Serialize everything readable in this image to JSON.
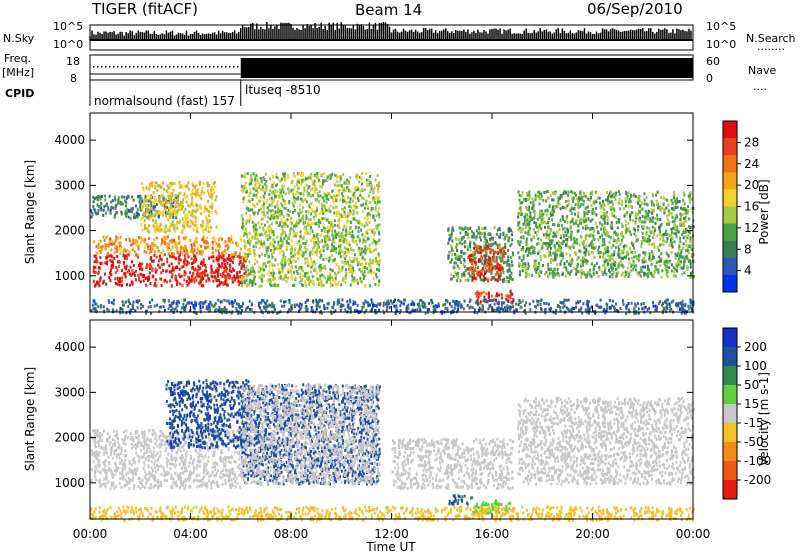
{
  "header": {
    "radar": "TIGER (fitACF)",
    "beam": "Beam 14",
    "date": "06/Sep/2010"
  },
  "nsky_panel": {
    "left_label": "N.Sky",
    "left_ticks": [
      "10^5",
      "10^0"
    ],
    "right_label": "N.Search",
    "right_ticks": [
      "10^5",
      "10^0"
    ],
    "right_dots": "........"
  },
  "freq_panel": {
    "left_label_1": "Freq.",
    "left_label_2": "[MHz]",
    "left_ticks": [
      "18",
      "8"
    ],
    "right_label": "Nave",
    "right_ticks": [
      "60",
      "0"
    ],
    "right_dots": "...."
  },
  "cpid_panel": {
    "label": "CPID",
    "program_1": "normalsound (fast) 157",
    "program_2": "ltuseq  -8510",
    "switch_time_hours": 6.0
  },
  "x_axis": {
    "label": "Time UT",
    "range_hours": [
      0,
      24
    ],
    "ticks": [
      "00:00",
      "04:00",
      "08:00",
      "12:00",
      "16:00",
      "20:00",
      "00:00"
    ]
  },
  "chart_data": [
    {
      "type": "heatmap",
      "name": "power",
      "ylabel": "Slant Range [km]",
      "y_ticks": [
        "1000",
        "2000",
        "3000",
        "4000"
      ],
      "ylim": [
        200,
        4600
      ],
      "colorbar": {
        "label": "Power [dB]",
        "range": [
          0,
          32
        ],
        "ticks": [
          "28",
          "24",
          "20",
          "16",
          "12",
          "8",
          "4"
        ],
        "colors": [
          "#0033ee",
          "#2e57b8",
          "#3d7a57",
          "#48a34a",
          "#a6c941",
          "#f2d22b",
          "#f5a31a",
          "#f07314",
          "#e8421c",
          "#e01010"
        ]
      },
      "regions": [
        {
          "t": [
            0.1,
            6.2
          ],
          "r": [
            800,
            1500
          ],
          "level_db": 30
        },
        {
          "t": [
            0.1,
            6.0
          ],
          "r": [
            1500,
            1900
          ],
          "level_db": 22
        },
        {
          "t": [
            0.0,
            3.5
          ],
          "r": [
            2300,
            2800
          ],
          "level_db": 8
        },
        {
          "t": [
            2.0,
            5.0
          ],
          "r": [
            2000,
            3100
          ],
          "level_db": 18
        },
        {
          "t": [
            6.0,
            11.5
          ],
          "r": [
            800,
            3300
          ],
          "level_db": 14
        },
        {
          "t": [
            14.2,
            16.8
          ],
          "r": [
            900,
            2100
          ],
          "level_db": 10
        },
        {
          "t": [
            15.0,
            16.5
          ],
          "r": [
            900,
            1700
          ],
          "level_db": 28
        },
        {
          "t": [
            15.3,
            16.8
          ],
          "r": [
            400,
            700
          ],
          "level_db": 28
        },
        {
          "t": [
            17.0,
            24.0
          ],
          "r": [
            1000,
            2900
          ],
          "level_db": 12
        },
        {
          "t": [
            0.0,
            24.0
          ],
          "r": [
            200,
            500
          ],
          "level_db": 6
        }
      ]
    },
    {
      "type": "heatmap",
      "name": "velocity",
      "ylabel": "Slant Range [km]",
      "y_ticks": [
        "1000",
        "2000",
        "3000",
        "4000"
      ],
      "ylim": [
        200,
        4600
      ],
      "colorbar": {
        "label": "Velocity [m s-1]",
        "range": [
          -250,
          250
        ],
        "ticks": [
          "200",
          "100",
          "50",
          "15",
          "-15",
          "-50",
          "-100",
          "-200"
        ],
        "colors": [
          "#1a2fc4",
          "#1f4fa0",
          "#2f8a4f",
          "#5fcf3a",
          "#c8c8c8",
          "#f5c02a",
          "#f58a18",
          "#ee5a15",
          "#e51a10"
        ]
      },
      "regions": [
        {
          "t": [
            0.0,
            6.0
          ],
          "r": [
            900,
            2200
          ],
          "velocity": 0
        },
        {
          "t": [
            3.0,
            6.3
          ],
          "r": [
            1800,
            3300
          ],
          "velocity": 180
        },
        {
          "t": [
            6.0,
            11.5
          ],
          "r": [
            1000,
            3200
          ],
          "velocity": 160
        },
        {
          "t": [
            6.0,
            11.5
          ],
          "r": [
            1000,
            3200
          ],
          "velocity": 0
        },
        {
          "t": [
            12.0,
            16.8
          ],
          "r": [
            900,
            2000
          ],
          "velocity": 0
        },
        {
          "t": [
            14.2,
            15.2
          ],
          "r": [
            550,
            750
          ],
          "velocity": 150
        },
        {
          "t": [
            15.2,
            16.8
          ],
          "r": [
            350,
            650
          ],
          "velocity": 60
        },
        {
          "t": [
            17.0,
            24.0
          ],
          "r": [
            1000,
            2900
          ],
          "velocity": 0
        },
        {
          "t": [
            0.0,
            24.0
          ],
          "r": [
            200,
            500
          ],
          "velocity": -60
        }
      ]
    }
  ]
}
